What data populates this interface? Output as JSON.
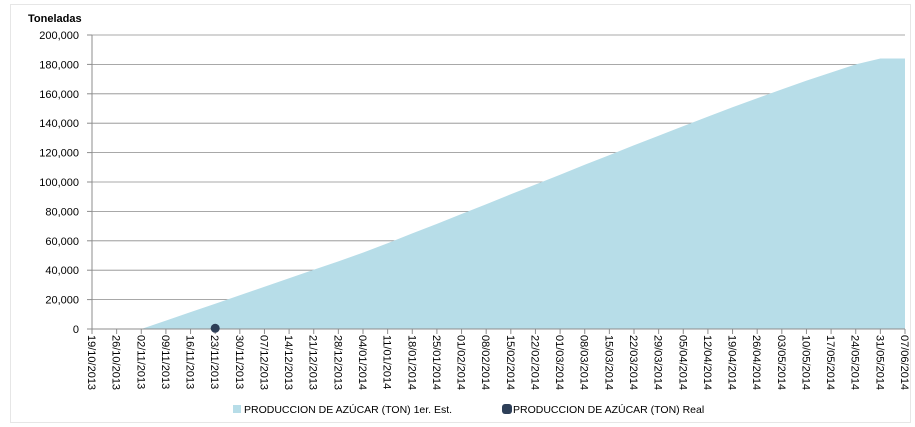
{
  "chart_data": {
    "type": "area",
    "title": "",
    "xlabel": "",
    "ylabel": "Toneladas",
    "ylim": [
      0,
      200000
    ],
    "yticks": [
      "0",
      "20,000",
      "40,000",
      "60,000",
      "80,000",
      "100,000",
      "120,000",
      "140,000",
      "160,000",
      "180,000",
      "200,000"
    ],
    "x_tick_labels": [
      "19/10/2013",
      "26/10/2013",
      "02/11/2013",
      "09/11/2013",
      "16/11/2013",
      "23/11/2013",
      "30/11/2013",
      "07/12/2013",
      "14/12/2013",
      "21/12/2013",
      "28/12/2013",
      "04/01/2014",
      "11/01/2014",
      "18/01/2014",
      "25/01/2014",
      "01/02/2014",
      "08/02/2014",
      "15/02/2014",
      "22/02/2014",
      "01/03/2014",
      "08/03/2014",
      "15/03/2014",
      "22/03/2014",
      "29/03/2014",
      "05/04/2014",
      "12/04/2014",
      "19/04/2014",
      "26/04/2014",
      "03/05/2014",
      "10/05/2014",
      "17/05/2014",
      "24/05/2014",
      "31/05/2014",
      "07/06/2014"
    ],
    "grid": true,
    "legend_position": "bottom",
    "series": [
      {
        "name": "PRODUCCION DE AZÚCAR (TON) 1er. Est.",
        "kind": "area",
        "color": "#b7dde8",
        "x": [
          "02/11/2013",
          "09/11/2013",
          "16/11/2013",
          "23/11/2013",
          "30/11/2013",
          "07/12/2013",
          "14/12/2013",
          "21/12/2013",
          "28/12/2013",
          "04/01/2014",
          "11/01/2014",
          "18/01/2014",
          "25/01/2014",
          "01/02/2014",
          "08/02/2014",
          "15/02/2014",
          "22/02/2014",
          "01/03/2014",
          "08/03/2014",
          "15/03/2014",
          "22/03/2014",
          "29/03/2014",
          "05/04/2014",
          "12/04/2014",
          "19/04/2014",
          "26/04/2014",
          "03/05/2014",
          "10/05/2014",
          "17/05/2014",
          "24/05/2014",
          "31/05/2014",
          "07/06/2014"
        ],
        "values": [
          0,
          5700,
          11500,
          17200,
          23000,
          28700,
          34500,
          40300,
          46000,
          52000,
          58300,
          65000,
          71500,
          78200,
          84900,
          91600,
          98300,
          105000,
          111700,
          118300,
          125000,
          131500,
          138000,
          144500,
          150800,
          157000,
          163000,
          169000,
          174500,
          180000,
          184000,
          184000
        ]
      },
      {
        "name": "PRODUCCION DE AZÚCAR (TON) Real",
        "kind": "scatter",
        "color": "#2e3f58",
        "x": [
          "23/11/2013"
        ],
        "values": [
          500
        ]
      }
    ]
  }
}
